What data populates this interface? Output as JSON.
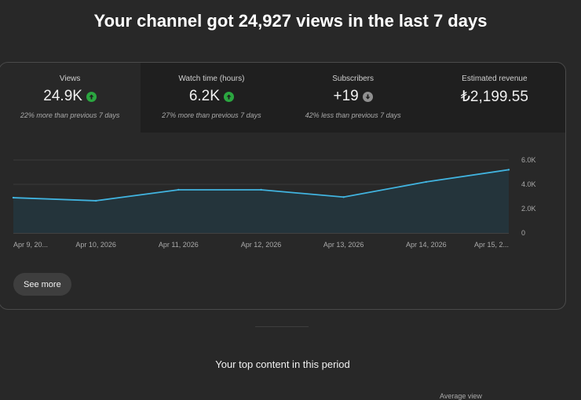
{
  "headline": "Your channel got 24,927 views in the last 7 days",
  "metrics": [
    {
      "label": "Views",
      "value": "24.9K",
      "trend": "up",
      "compare": "22% more than previous 7 days"
    },
    {
      "label": "Watch time (hours)",
      "value": "6.2K",
      "trend": "up",
      "compare": "27% more than previous 7 days"
    },
    {
      "label": "Subscribers",
      "value": "+19",
      "trend": "down",
      "compare": "42% less than previous 7 days"
    },
    {
      "label": "Estimated revenue",
      "value": "₺2,199.55",
      "trend": "",
      "compare": ""
    }
  ],
  "colors": {
    "up": "#2ba640",
    "down": "#909090",
    "line": "#41b4e0",
    "fill": "#24343b"
  },
  "chart_data": {
    "type": "area",
    "categories": [
      "Apr 9, 20...",
      "Apr 10, 2026",
      "Apr 11, 2026",
      "Apr 12, 2026",
      "Apr 13, 2026",
      "Apr 14, 2026",
      "Apr 15, 2..."
    ],
    "values": [
      2900,
      2650,
      3550,
      3550,
      2950,
      4200,
      5200
    ],
    "ylim": [
      0,
      6000
    ],
    "y_ticks": [
      "0",
      "2.0K",
      "4.0K",
      "6.0K"
    ],
    "y_tick_values": [
      0,
      2000,
      4000,
      6000
    ],
    "grid": true
  },
  "see_more_label": "See more",
  "top_content_title": "Your top content in this period",
  "table_header": "Average view"
}
